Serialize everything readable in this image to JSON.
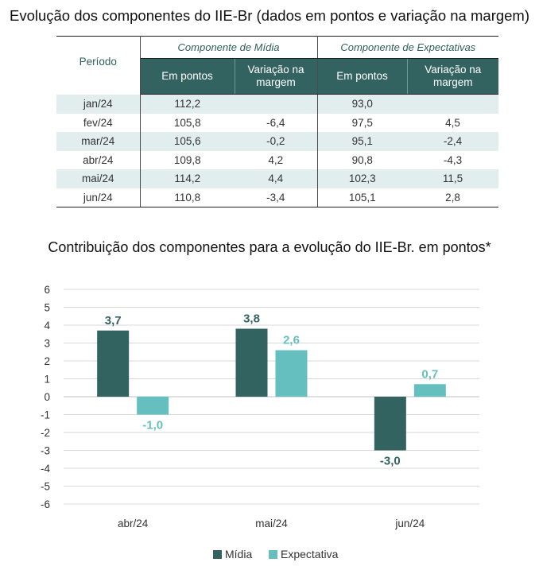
{
  "table": {
    "title": "Evolução dos componentes do IIE-Br (dados em pontos e variação na margem)",
    "period_header": "Período",
    "group_midia": "Componente de Mídia",
    "group_expectativas": "Componente de Expectativas",
    "sub_em_pontos": "Em pontos",
    "sub_variacao": "Variação na margem",
    "rows": [
      {
        "periodo": "jan/24",
        "midia_pontos": "112,2",
        "midia_var": "",
        "exp_pontos": "93,0",
        "exp_var": ""
      },
      {
        "periodo": "fev/24",
        "midia_pontos": "105,8",
        "midia_var": "-6,4",
        "exp_pontos": "97,5",
        "exp_var": "4,5"
      },
      {
        "periodo": "mar/24",
        "midia_pontos": "105,6",
        "midia_var": "-0,2",
        "exp_pontos": "95,1",
        "exp_var": "-2,4"
      },
      {
        "periodo": "abr/24",
        "midia_pontos": "109,8",
        "midia_var": "4,2",
        "exp_pontos": "90,8",
        "exp_var": "-4,3"
      },
      {
        "periodo": "mai/24",
        "midia_pontos": "114,2",
        "midia_var": "4,4",
        "exp_pontos": "102,3",
        "exp_var": "11,5"
      },
      {
        "periodo": "jun/24",
        "midia_pontos": "110,8",
        "midia_var": "-3,4",
        "exp_pontos": "105,1",
        "exp_var": "2,8"
      }
    ]
  },
  "chart_data": {
    "type": "bar",
    "title": "Contribuição dos componentes para a evolução do IIE-Br. em pontos*",
    "xlabel": "",
    "ylabel": "",
    "categories": [
      "abr/24",
      "mai/24",
      "jun/24"
    ],
    "series": [
      {
        "name": "Mídia",
        "values": [
          3.7,
          3.8,
          -3.0
        ],
        "labels": [
          "3,7",
          "3,8",
          "-3,0"
        ],
        "color": "#336360"
      },
      {
        "name": "Expectativa",
        "values": [
          -1.0,
          2.6,
          0.7
        ],
        "labels": [
          "-1,0",
          "2,6",
          "0,7"
        ],
        "color": "#66bfbf"
      }
    ],
    "ylim": [
      -6,
      6
    ],
    "yticks": [
      6,
      5,
      4,
      3,
      2,
      1,
      0,
      -1,
      -2,
      -3,
      -4,
      -5,
      -6
    ],
    "grid": true,
    "legend": "bottom-center"
  }
}
